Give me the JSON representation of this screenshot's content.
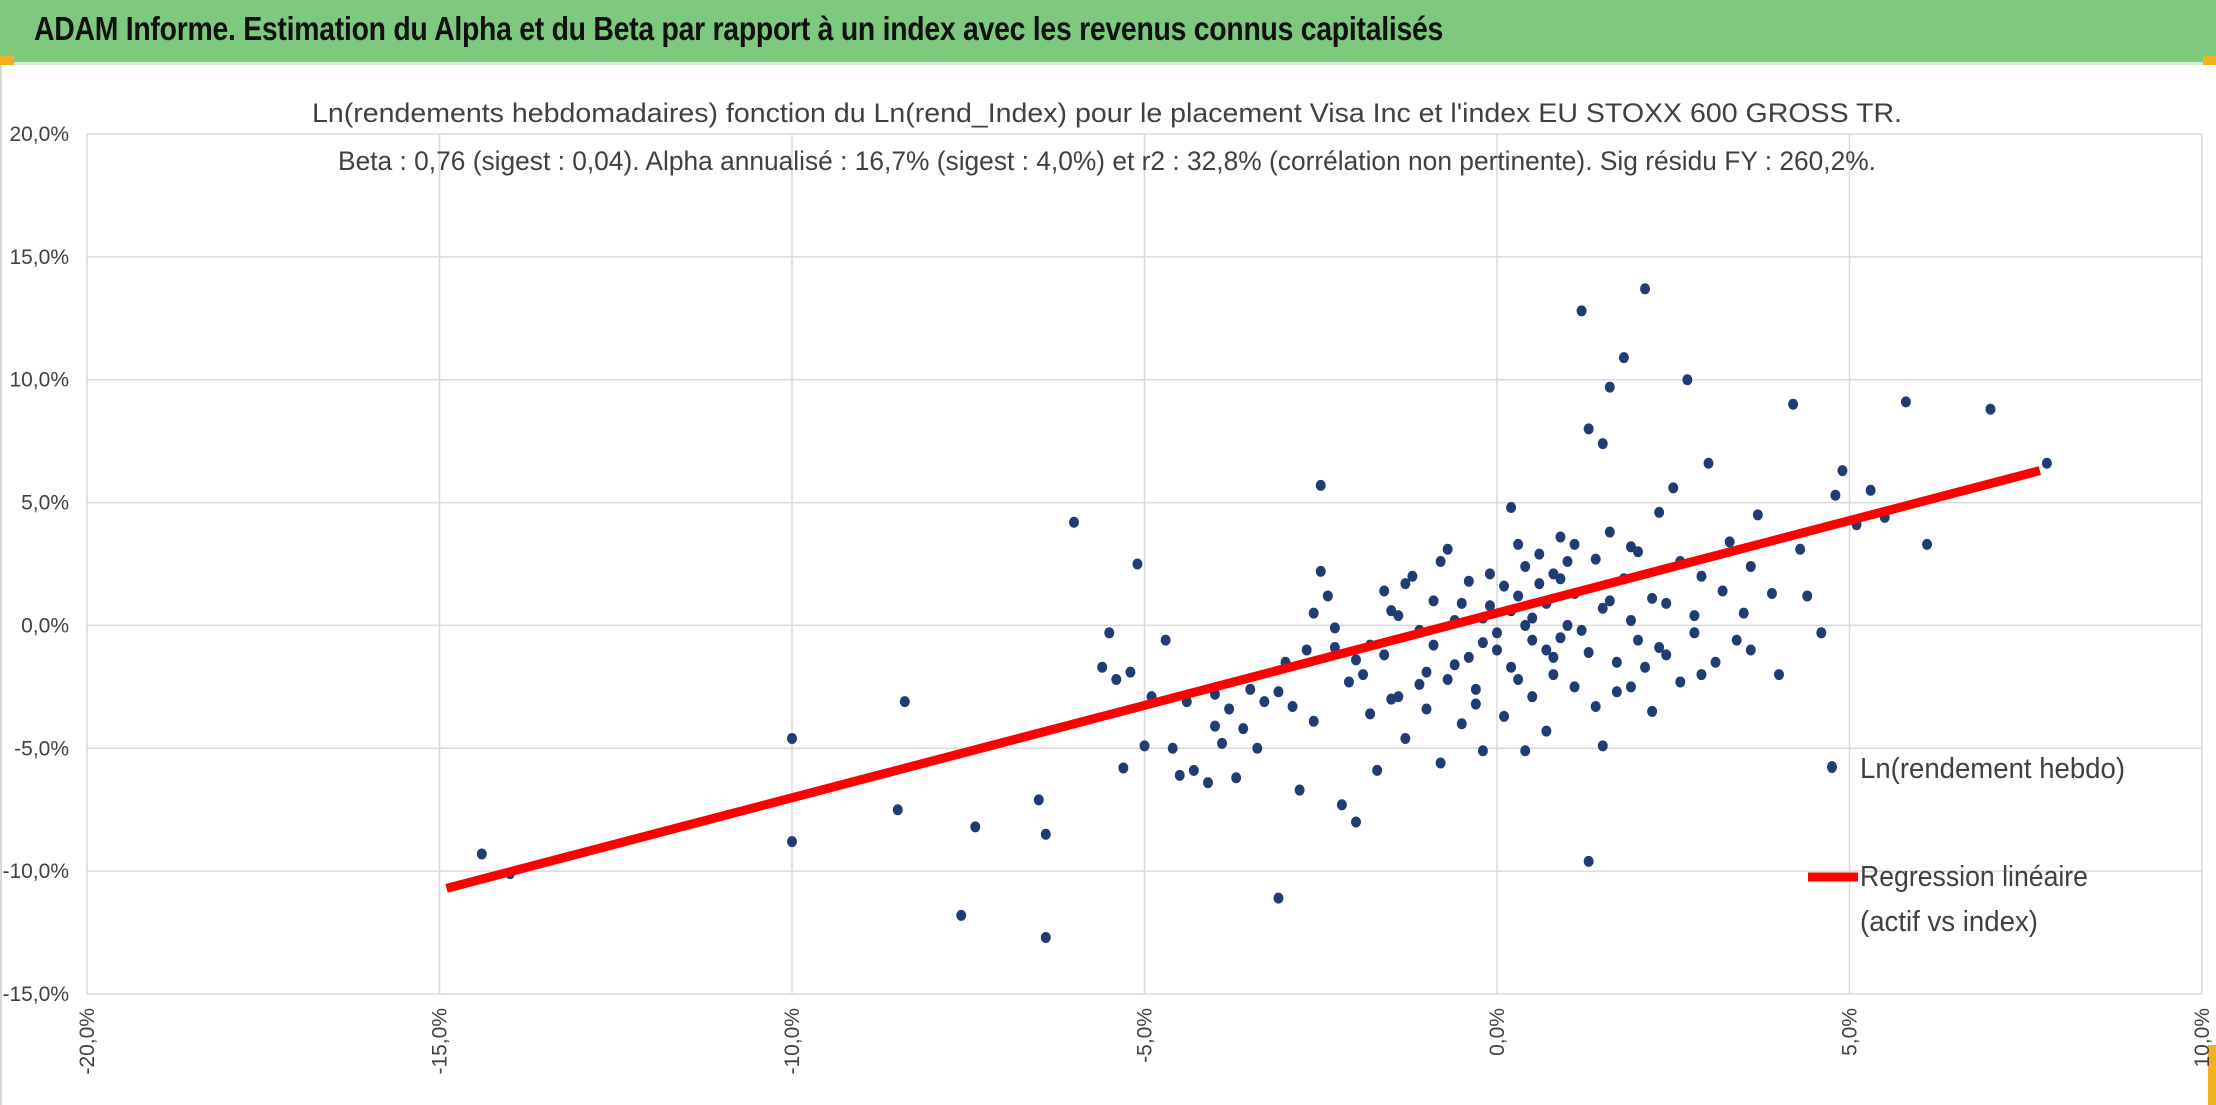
{
  "banner": {
    "title": "ADAM Informe. Estimation du Alpha et du Beta par rapport à un index avec les revenus connus capitalisés"
  },
  "colors": {
    "banner": "#7dc97d",
    "points": "#1f3c73",
    "regression": "#ff0000",
    "grid": "#d9d9d9",
    "corner": "#f2b21f"
  },
  "chart_data": {
    "type": "scatter",
    "title_line1": "Ln(rendements hebdomadaires) fonction du Ln(rend_Index) pour le placement Visa Inc et l'index EU STOXX 600 GROSS TR.",
    "title_line2": "Beta : 0,76 (sigest : 0,04). Alpha annualisé : 16,7% (sigest : 4,0%) et r2 : 32,8% (corrélation non pertinente). Sig résidu FY : 260,2%.",
    "xlim": [
      -20,
      10
    ],
    "ylim": [
      -15,
      20
    ],
    "x_ticks": [
      -20,
      -15,
      -10,
      -5,
      0,
      5,
      10
    ],
    "y_ticks": [
      -15,
      -10,
      -5,
      0,
      5,
      10,
      15,
      20
    ],
    "x_tick_labels": [
      "-20,0%",
      "-15,0%",
      "-10,0%",
      "-5,0%",
      "0,0%",
      "5,0%",
      "10,0%"
    ],
    "y_tick_labels": [
      "-15,0%",
      "-10,0%",
      "-5,0%",
      "0,0%",
      "5,0%",
      "10,0%",
      "15,0%",
      "20,0%"
    ],
    "legend": {
      "placement": "right",
      "scatter_label": "Ln(rendement hebdo)",
      "line_label_1": "Regression linéaire",
      "line_label_2": "(actif vs index)"
    },
    "regression": {
      "x": [
        -14.9,
        7.7
      ],
      "y": [
        -10.7,
        6.3
      ]
    },
    "series": [
      {
        "name": "Ln(rendement hebdo)",
        "points": [
          [
            -14.4,
            -9.3
          ],
          [
            -14.0,
            -10.1
          ],
          [
            -10.0,
            -4.6
          ],
          [
            -10.0,
            -8.8
          ],
          [
            -8.4,
            -3.1
          ],
          [
            -8.5,
            -7.5
          ],
          [
            -7.6,
            -11.8
          ],
          [
            -7.4,
            -8.2
          ],
          [
            -6.5,
            -7.1
          ],
          [
            -6.4,
            -8.5
          ],
          [
            -6.4,
            -12.7
          ],
          [
            -6.0,
            4.2
          ],
          [
            -5.1,
            2.5
          ],
          [
            -5.0,
            -4.9
          ],
          [
            -5.6,
            -1.7
          ],
          [
            -5.5,
            -0.3
          ],
          [
            -5.4,
            -2.2
          ],
          [
            -5.2,
            -1.9
          ],
          [
            -5.3,
            -5.8
          ],
          [
            -4.9,
            -2.9
          ],
          [
            -4.7,
            -0.6
          ],
          [
            -4.6,
            -5.0
          ],
          [
            -4.5,
            -6.1
          ],
          [
            -4.4,
            -3.1
          ],
          [
            -4.3,
            -5.9
          ],
          [
            -4.1,
            -6.4
          ],
          [
            -4.0,
            -4.1
          ],
          [
            -4.0,
            -2.8
          ],
          [
            -3.9,
            -4.8
          ],
          [
            -3.8,
            -3.4
          ],
          [
            -3.7,
            -6.2
          ],
          [
            -3.6,
            -4.2
          ],
          [
            -3.5,
            -2.6
          ],
          [
            -3.4,
            -5.0
          ],
          [
            -3.3,
            -3.1
          ],
          [
            -3.1,
            -2.7
          ],
          [
            -3.1,
            -11.1
          ],
          [
            -3.0,
            -1.5
          ],
          [
            -2.9,
            -3.3
          ],
          [
            -2.8,
            -6.7
          ],
          [
            -2.7,
            -1.0
          ],
          [
            -2.6,
            -3.9
          ],
          [
            -2.5,
            5.7
          ],
          [
            -2.5,
            2.2
          ],
          [
            -2.4,
            1.2
          ],
          [
            -2.3,
            -0.9
          ],
          [
            -2.2,
            -7.3
          ],
          [
            -2.1,
            -2.3
          ],
          [
            -2.0,
            -8.0
          ],
          [
            -1.9,
            -2.0
          ],
          [
            -1.8,
            -3.6
          ],
          [
            -1.7,
            -5.9
          ],
          [
            -1.6,
            -1.2
          ],
          [
            -1.5,
            -3.0
          ],
          [
            -1.4,
            0.4
          ],
          [
            -1.3,
            -4.6
          ],
          [
            -1.2,
            2.0
          ],
          [
            -1.1,
            -2.4
          ],
          [
            -1.0,
            -3.4
          ],
          [
            -0.9,
            -0.8
          ],
          [
            -0.8,
            -5.6
          ],
          [
            -0.7,
            3.1
          ],
          [
            -0.6,
            -1.6
          ],
          [
            -0.5,
            -4.0
          ],
          [
            -0.4,
            1.8
          ],
          [
            -0.3,
            -2.6
          ],
          [
            -0.2,
            -5.1
          ],
          [
            -0.1,
            0.8
          ],
          [
            0.0,
            -1.0
          ],
          [
            0.1,
            -3.7
          ],
          [
            0.2,
            4.8
          ],
          [
            0.3,
            -2.2
          ],
          [
            0.4,
            -5.1
          ],
          [
            0.5,
            0.3
          ],
          [
            0.6,
            2.9
          ],
          [
            0.7,
            -4.3
          ],
          [
            0.8,
            -1.3
          ],
          [
            0.9,
            3.6
          ],
          [
            1.0,
            0.0
          ],
          [
            1.1,
            -2.5
          ],
          [
            1.2,
            12.8
          ],
          [
            1.3,
            -9.6
          ],
          [
            1.3,
            8.0
          ],
          [
            1.4,
            2.7
          ],
          [
            1.5,
            7.4
          ],
          [
            1.5,
            -4.9
          ],
          [
            1.6,
            9.7
          ],
          [
            1.7,
            -1.5
          ],
          [
            1.8,
            10.9
          ],
          [
            1.9,
            3.2
          ],
          [
            2.0,
            -0.6
          ],
          [
            2.1,
            13.7
          ],
          [
            2.2,
            -3.5
          ],
          [
            2.3,
            4.6
          ],
          [
            2.4,
            0.9
          ],
          [
            2.5,
            5.6
          ],
          [
            2.6,
            -2.3
          ],
          [
            2.7,
            10.0
          ],
          [
            2.8,
            -0.3
          ],
          [
            2.9,
            2.0
          ],
          [
            3.0,
            6.6
          ],
          [
            3.1,
            -1.5
          ],
          [
            3.3,
            3.4
          ],
          [
            3.5,
            0.5
          ],
          [
            3.6,
            -1.0
          ],
          [
            3.7,
            4.5
          ],
          [
            3.9,
            1.3
          ],
          [
            4.0,
            -2.0
          ],
          [
            4.2,
            9.0
          ],
          [
            4.3,
            3.1
          ],
          [
            4.4,
            1.2
          ],
          [
            4.6,
            -0.3
          ],
          [
            4.8,
            5.3
          ],
          [
            4.9,
            6.3
          ],
          [
            5.1,
            4.1
          ],
          [
            5.3,
            5.5
          ],
          [
            5.5,
            4.4
          ],
          [
            5.8,
            9.1
          ],
          [
            6.1,
            3.3
          ],
          [
            7.0,
            8.8
          ],
          [
            7.8,
            6.6
          ],
          [
            0.3,
            1.2
          ],
          [
            0.5,
            -0.6
          ],
          [
            0.7,
            0.9
          ],
          [
            -0.2,
            0.3
          ],
          [
            0.1,
            1.6
          ],
          [
            0.9,
            -0.5
          ],
          [
            1.1,
            1.3
          ],
          [
            -0.6,
            0.2
          ],
          [
            1.5,
            0.7
          ],
          [
            0.4,
            2.4
          ],
          [
            -0.9,
            1.0
          ],
          [
            1.8,
            1.9
          ],
          [
            -1.1,
            -0.2
          ],
          [
            0.2,
            -1.7
          ],
          [
            1.3,
            -1.1
          ],
          [
            2.2,
            1.1
          ],
          [
            -0.4,
            -1.3
          ],
          [
            0.6,
            1.7
          ],
          [
            1.9,
            0.2
          ],
          [
            -1.5,
            0.6
          ],
          [
            2.6,
            2.6
          ],
          [
            -0.1,
            2.1
          ],
          [
            1.0,
            2.6
          ],
          [
            0.8,
            -2.0
          ],
          [
            -1.8,
            -0.8
          ],
          [
            1.6,
            3.8
          ],
          [
            0.0,
            -0.3
          ],
          [
            2.4,
            -1.2
          ],
          [
            -0.7,
            -2.2
          ],
          [
            3.2,
            1.4
          ],
          [
            -2.0,
            -1.4
          ],
          [
            0.3,
            3.3
          ],
          [
            1.2,
            -0.2
          ],
          [
            -1.3,
            1.7
          ],
          [
            2.8,
            0.4
          ],
          [
            0.5,
            -2.9
          ],
          [
            1.7,
            -2.7
          ],
          [
            -0.3,
            -3.2
          ],
          [
            3.4,
            -0.6
          ],
          [
            -2.6,
            0.5
          ],
          [
            0.9,
            1.9
          ],
          [
            -0.8,
            2.6
          ],
          [
            2.0,
            3.0
          ],
          [
            1.4,
            -3.3
          ],
          [
            -1.6,
            1.4
          ],
          [
            0.2,
            0.6
          ],
          [
            2.3,
            -0.9
          ],
          [
            -0.5,
            0.9
          ],
          [
            1.1,
            3.3
          ],
          [
            3.6,
            2.4
          ],
          [
            -1.0,
            -1.9
          ],
          [
            0.7,
            -1.0
          ],
          [
            2.1,
            -1.7
          ],
          [
            -2.3,
            -0.1
          ],
          [
            0.4,
            0.0
          ],
          [
            1.6,
            1.0
          ],
          [
            -0.2,
            -0.7
          ],
          [
            2.9,
            -2.0
          ],
          [
            0.8,
            2.1
          ],
          [
            -1.4,
            -2.9
          ],
          [
            1.9,
            -2.5
          ]
        ]
      }
    ]
  }
}
